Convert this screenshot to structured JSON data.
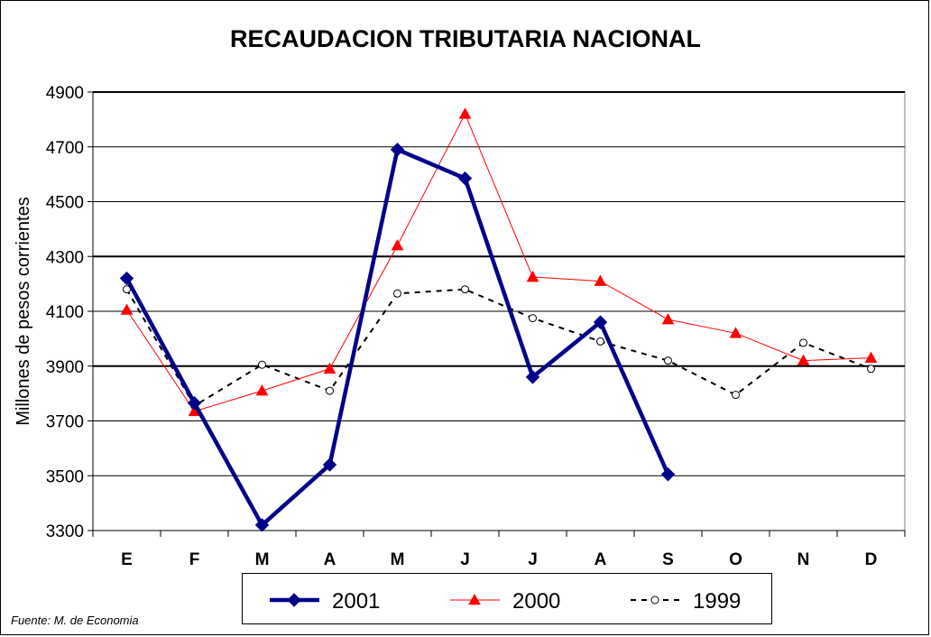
{
  "chart_data": {
    "type": "line",
    "title": "RECAUDACION TRIBUTARIA NACIONAL",
    "ylabel": "Millones de pesos corrientes",
    "xlabel": "",
    "categories": [
      "E",
      "F",
      "M",
      "A",
      "M",
      "J",
      "J",
      "A",
      "S",
      "O",
      "N",
      "D"
    ],
    "ylim": [
      3300,
      4900
    ],
    "yticks": [
      3300,
      3500,
      3700,
      3900,
      4100,
      4300,
      4500,
      4700,
      4900
    ],
    "grid": true,
    "legend_position": "bottom",
    "series": [
      {
        "name": "2001",
        "color": "#00008B",
        "marker": "diamond",
        "style": "solid-thick",
        "values": [
          4220,
          3765,
          3320,
          3540,
          4690,
          4585,
          3860,
          4060,
          3505,
          null,
          null,
          null
        ]
      },
      {
        "name": "2000",
        "color": "#FF0000",
        "marker": "triangle",
        "style": "solid-thin",
        "values": [
          4105,
          3735,
          3810,
          3890,
          4340,
          4820,
          4225,
          4210,
          4070,
          4020,
          3920,
          3930
        ]
      },
      {
        "name": "1999",
        "color": "#000000",
        "marker": "circle",
        "style": "dashed",
        "values": [
          4180,
          3755,
          3905,
          3810,
          4165,
          4180,
          4075,
          3990,
          3920,
          3795,
          3985,
          3890
        ]
      }
    ]
  },
  "footer": {
    "source": "Fuente: M. de Economia"
  }
}
